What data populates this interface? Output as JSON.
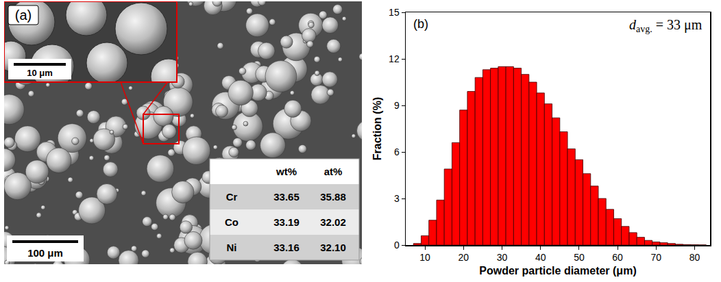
{
  "chart_data": {
    "type": "histogram",
    "label": "(b)",
    "annotation": {
      "symbol": "d",
      "subscript": "avg.",
      "text": "= 33 μm"
    },
    "x_label": "Powder particle diameter (μm)",
    "y_label": "Fraction (%)",
    "bins": [
      7,
      9,
      11,
      13,
      15,
      17,
      19,
      21,
      23,
      25,
      27,
      29,
      31,
      33,
      35,
      37,
      39,
      41,
      43,
      45,
      47,
      49,
      51,
      53,
      55,
      57,
      59,
      61,
      63,
      65,
      67,
      69,
      71,
      73,
      75,
      77,
      79,
      81,
      83
    ],
    "values": [
      0.1,
      0.6,
      1.6,
      2.9,
      4.9,
      6.6,
      8.7,
      9.9,
      10.8,
      11.3,
      11.4,
      11.5,
      11.5,
      11.4,
      11.0,
      10.5,
      9.8,
      9.1,
      8.2,
      7.3,
      6.2,
      5.5,
      4.6,
      3.8,
      3.0,
      2.3,
      1.7,
      1.2,
      0.8,
      0.5,
      0.3,
      0.2,
      0.15,
      0.1,
      0.05,
      0.03,
      0.02,
      0.01
    ],
    "color": "#ff0000",
    "xlim": [
      5,
      84
    ],
    "xticks": [
      10,
      20,
      30,
      40,
      50,
      60,
      70,
      80
    ],
    "ylim": [
      0,
      15
    ],
    "yticks": [
      0,
      3,
      6,
      9,
      12,
      15
    ],
    "grid": false
  },
  "image_panel": {
    "label": "(a)",
    "inset_scale_bar": "10 μm",
    "scale_bar": "100 μm",
    "table": {
      "columns": [
        "wt%",
        "at%"
      ],
      "rows": [
        {
          "element": "Cr",
          "values": [
            "33.65",
            "35.88"
          ]
        },
        {
          "element": "Co",
          "values": [
            "33.19",
            "32.02"
          ]
        },
        {
          "element": "Ni",
          "values": [
            "33.16",
            "32.10"
          ]
        }
      ]
    }
  }
}
